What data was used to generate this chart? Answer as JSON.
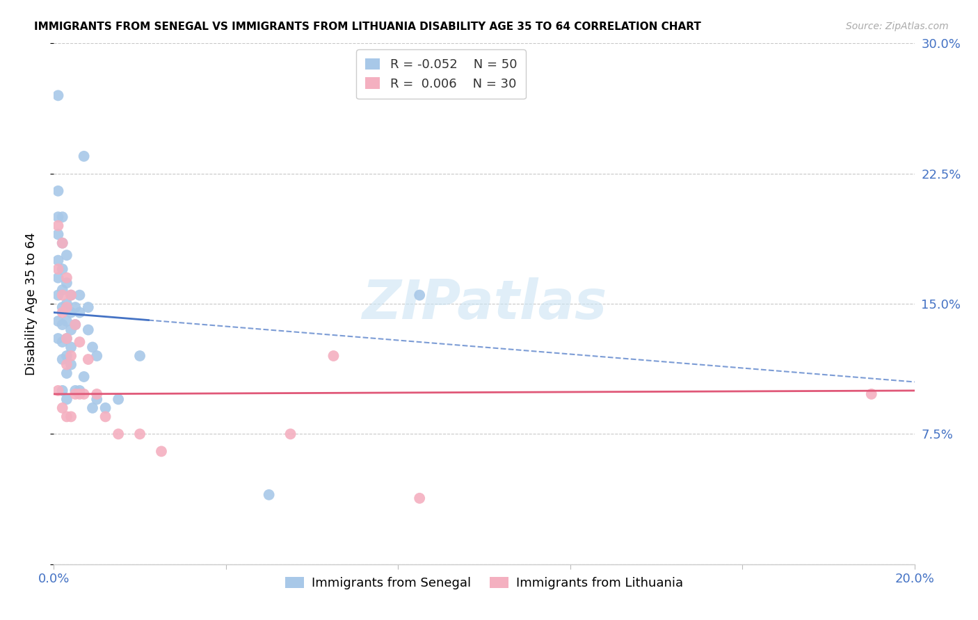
{
  "title": "IMMIGRANTS FROM SENEGAL VS IMMIGRANTS FROM LITHUANIA DISABILITY AGE 35 TO 64 CORRELATION CHART",
  "source": "Source: ZipAtlas.com",
  "ylabel": "Disability Age 35 to 64",
  "xlim": [
    0.0,
    0.2
  ],
  "ylim": [
    0.0,
    0.3
  ],
  "xticks": [
    0.0,
    0.04,
    0.08,
    0.12,
    0.16,
    0.2
  ],
  "yticks": [
    0.0,
    0.075,
    0.15,
    0.225,
    0.3
  ],
  "xtick_labels": [
    "0.0%",
    "",
    "",
    "",
    "",
    "20.0%"
  ],
  "ytick_labels_right": [
    "",
    "7.5%",
    "15.0%",
    "22.5%",
    "30.0%"
  ],
  "background_color": "#ffffff",
  "grid_color": "#c8c8c8",
  "senegal_color": "#a8c8e8",
  "senegal_line_color": "#4472c4",
  "lithuania_color": "#f4b0c0",
  "lithuania_line_color": "#e05878",
  "legend_R_senegal": "-0.052",
  "legend_N_senegal": "50",
  "legend_R_lithuania": "0.006",
  "legend_N_lithuania": "30",
  "watermark": "ZIPatlas",
  "senegal_x": [
    0.001,
    0.001,
    0.001,
    0.001,
    0.001,
    0.001,
    0.001,
    0.001,
    0.001,
    0.002,
    0.002,
    0.002,
    0.002,
    0.002,
    0.002,
    0.002,
    0.002,
    0.002,
    0.003,
    0.003,
    0.003,
    0.003,
    0.003,
    0.003,
    0.003,
    0.003,
    0.004,
    0.004,
    0.004,
    0.004,
    0.004,
    0.005,
    0.005,
    0.005,
    0.006,
    0.006,
    0.006,
    0.007,
    0.007,
    0.008,
    0.008,
    0.009,
    0.009,
    0.01,
    0.01,
    0.012,
    0.015,
    0.02,
    0.05,
    0.085
  ],
  "senegal_y": [
    0.27,
    0.215,
    0.2,
    0.19,
    0.175,
    0.165,
    0.155,
    0.14,
    0.13,
    0.2,
    0.185,
    0.17,
    0.158,
    0.148,
    0.138,
    0.128,
    0.118,
    0.1,
    0.178,
    0.162,
    0.15,
    0.14,
    0.13,
    0.12,
    0.11,
    0.095,
    0.155,
    0.145,
    0.135,
    0.125,
    0.115,
    0.148,
    0.138,
    0.1,
    0.155,
    0.145,
    0.1,
    0.235,
    0.108,
    0.148,
    0.135,
    0.125,
    0.09,
    0.12,
    0.095,
    0.09,
    0.095,
    0.12,
    0.04,
    0.155
  ],
  "lithuania_x": [
    0.001,
    0.001,
    0.001,
    0.002,
    0.002,
    0.002,
    0.002,
    0.003,
    0.003,
    0.003,
    0.003,
    0.003,
    0.004,
    0.004,
    0.004,
    0.005,
    0.005,
    0.006,
    0.006,
    0.007,
    0.008,
    0.01,
    0.012,
    0.015,
    0.02,
    0.025,
    0.055,
    0.065,
    0.085,
    0.19
  ],
  "lithuania_y": [
    0.195,
    0.17,
    0.1,
    0.185,
    0.155,
    0.145,
    0.09,
    0.165,
    0.148,
    0.13,
    0.115,
    0.085,
    0.155,
    0.12,
    0.085,
    0.138,
    0.098,
    0.128,
    0.098,
    0.098,
    0.118,
    0.098,
    0.085,
    0.075,
    0.075,
    0.065,
    0.075,
    0.12,
    0.038,
    0.098
  ],
  "senegal_trendline_x": [
    0.0,
    0.2
  ],
  "senegal_trendline_y": [
    0.145,
    0.105
  ],
  "lithuania_trendline_x": [
    0.0,
    0.2
  ],
  "lithuania_trendline_y": [
    0.098,
    0.1
  ]
}
